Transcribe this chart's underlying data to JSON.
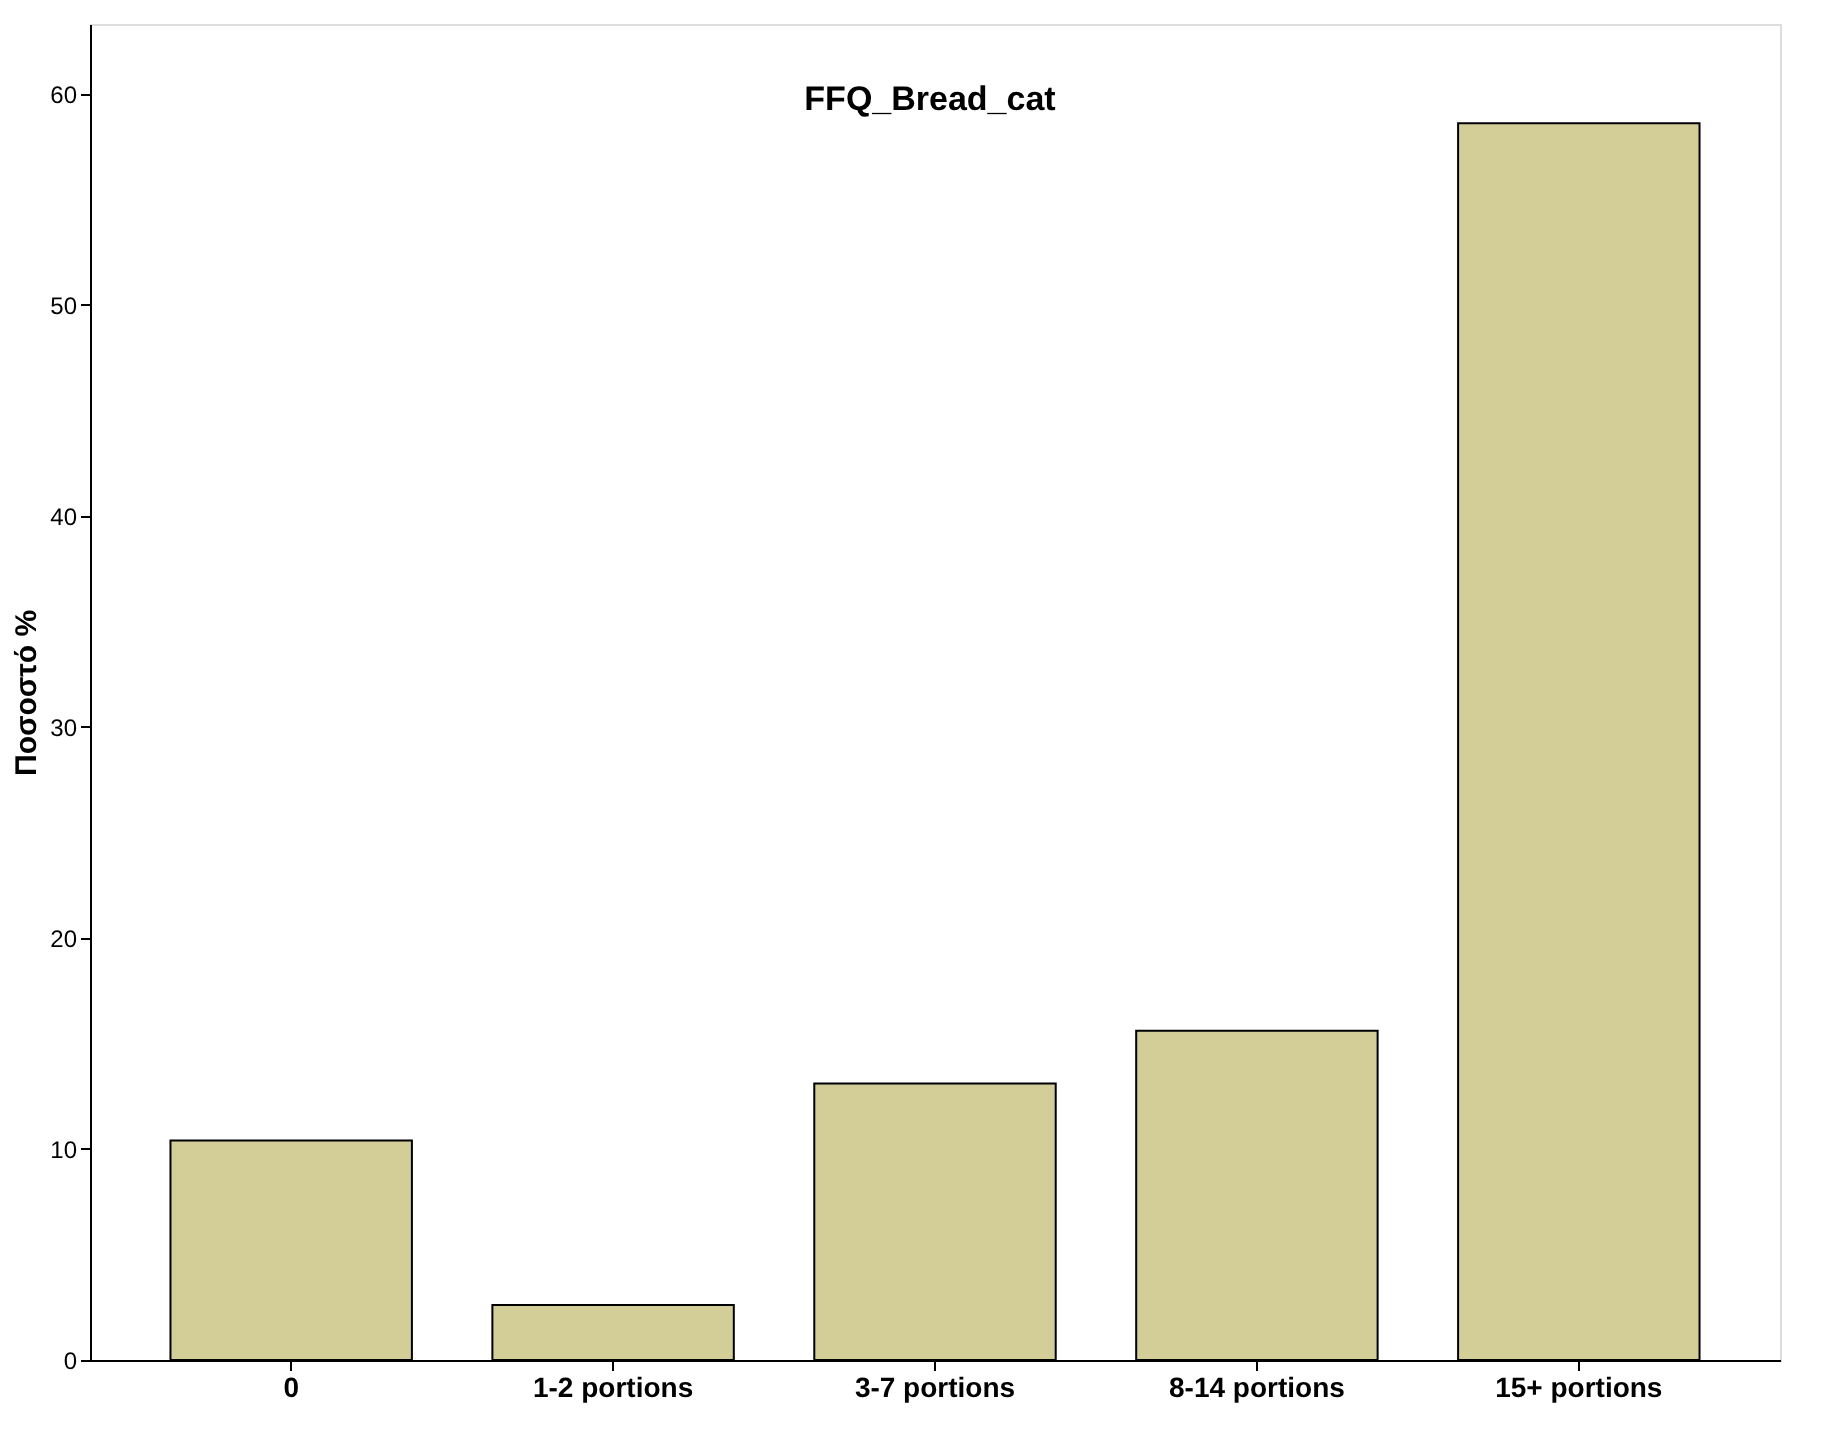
{
  "chart_data": {
    "type": "bar",
    "title": "FFQ_Bread_cat",
    "ylabel": "Ποσοστό %",
    "categories": [
      "0",
      "1-2 portions",
      "3-7 portions",
      "8-14 portions",
      "15+ portions"
    ],
    "values": [
      10.4,
      2.6,
      13.1,
      15.6,
      58.6
    ],
    "color": "#d3ce97",
    "ylim": [
      0,
      63.3
    ],
    "yticks": [
      0,
      10,
      20,
      30,
      40,
      50,
      60
    ],
    "grid": false
  }
}
